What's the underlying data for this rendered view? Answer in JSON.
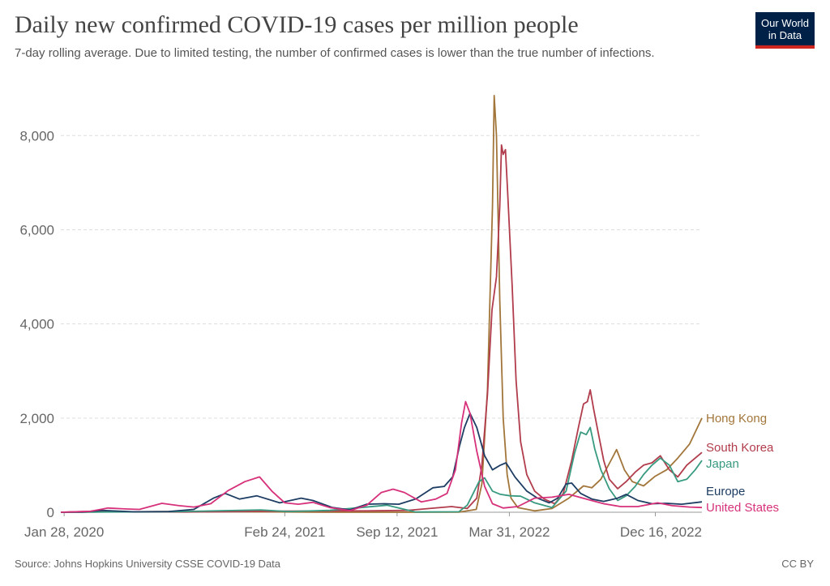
{
  "header": {
    "title": "Daily new confirmed COVID-19 cases per million people",
    "subtitle": "7-day rolling average. Due to limited testing, the number of confirmed cases is lower than the true number of infections."
  },
  "logo": {
    "line1": "Our World",
    "line2": "in Data"
  },
  "footer": {
    "source": "Source: Johns Hopkins University CSSE COVID-19 Data",
    "license": "CC BY"
  },
  "chart_data": {
    "type": "line",
    "title": "Daily new confirmed COVID-19 cases per million people",
    "subtitle": "7-day rolling average. Due to limited testing, the number of confirmed cases is lower than the true number of infections.",
    "xlabel": "",
    "ylabel": "",
    "x_ticks": [
      "Jan 28, 2020",
      "Feb 24, 2021",
      "Sep 12, 2021",
      "Mar 31, 2022",
      "Dec 16, 2022"
    ],
    "x_range": [
      "2020-01-22",
      "2023-03-09"
    ],
    "y_ticks": [
      0,
      2000,
      4000,
      6000,
      8000
    ],
    "y_tick_labels": [
      "0",
      "2,000",
      "4,000",
      "6,000",
      "8,000"
    ],
    "ylim": [
      0,
      8900
    ],
    "grid": "horizontal dashed",
    "legend": "inline labels at right end of lines",
    "series": [
      {
        "name": "Hong Kong",
        "color": "#a2763a",
        "points": [
          [
            "2020-01-22",
            0
          ],
          [
            "2020-07-29",
            15
          ],
          [
            "2020-12-01",
            12
          ],
          [
            "2021-01-15",
            8
          ],
          [
            "2021-06-01",
            0
          ],
          [
            "2021-12-31",
            2
          ],
          [
            "2022-01-31",
            60
          ],
          [
            "2022-02-10",
            600
          ],
          [
            "2022-02-20",
            2600
          ],
          [
            "2022-03-01",
            6500
          ],
          [
            "2022-03-04",
            8850
          ],
          [
            "2022-03-08",
            8000
          ],
          [
            "2022-03-14",
            4500
          ],
          [
            "2022-03-20",
            2000
          ],
          [
            "2022-03-27",
            800
          ],
          [
            "2022-04-03",
            300
          ],
          [
            "2022-04-15",
            100
          ],
          [
            "2022-05-15",
            30
          ],
          [
            "2022-06-15",
            80
          ],
          [
            "2022-07-15",
            300
          ],
          [
            "2022-08-10",
            560
          ],
          [
            "2022-08-25",
            520
          ],
          [
            "2022-09-10",
            700
          ],
          [
            "2022-10-01",
            1170
          ],
          [
            "2022-10-08",
            1330
          ],
          [
            "2022-10-22",
            900
          ],
          [
            "2022-11-05",
            650
          ],
          [
            "2022-11-25",
            560
          ],
          [
            "2022-12-15",
            760
          ],
          [
            "2023-01-05",
            900
          ],
          [
            "2023-01-25",
            1150
          ],
          [
            "2023-02-15",
            1450
          ],
          [
            "2023-03-09",
            2000
          ]
        ]
      },
      {
        "name": "South Korea",
        "color": "#b13c4c",
        "points": [
          [
            "2020-01-22",
            0
          ],
          [
            "2020-03-01",
            15
          ],
          [
            "2020-09-01",
            5
          ],
          [
            "2020-12-25",
            20
          ],
          [
            "2021-07-20",
            30
          ],
          [
            "2021-10-01",
            40
          ],
          [
            "2021-12-18",
            120
          ],
          [
            "2022-01-15",
            80
          ],
          [
            "2022-02-01",
            300
          ],
          [
            "2022-02-10",
            1000
          ],
          [
            "2022-02-20",
            2500
          ],
          [
            "2022-02-28",
            4300
          ],
          [
            "2022-03-08",
            5000
          ],
          [
            "2022-03-14",
            6500
          ],
          [
            "2022-03-17",
            7800
          ],
          [
            "2022-03-20",
            7600
          ],
          [
            "2022-03-24",
            7700
          ],
          [
            "2022-03-28",
            6800
          ],
          [
            "2022-04-05",
            4800
          ],
          [
            "2022-04-12",
            2800
          ],
          [
            "2022-04-20",
            1500
          ],
          [
            "2022-05-01",
            800
          ],
          [
            "2022-05-15",
            450
          ],
          [
            "2022-06-01",
            280
          ],
          [
            "2022-06-20",
            180
          ],
          [
            "2022-07-05",
            400
          ],
          [
            "2022-07-20",
            1100
          ],
          [
            "2022-08-01",
            1800
          ],
          [
            "2022-08-10",
            2300
          ],
          [
            "2022-08-17",
            2350
          ],
          [
            "2022-08-22",
            2600
          ],
          [
            "2022-08-28",
            2200
          ],
          [
            "2022-09-05",
            1700
          ],
          [
            "2022-09-15",
            1100
          ],
          [
            "2022-09-25",
            700
          ],
          [
            "2022-10-10",
            500
          ],
          [
            "2022-10-25",
            650
          ],
          [
            "2022-11-10",
            850
          ],
          [
            "2022-11-25",
            1000
          ],
          [
            "2022-12-10",
            1050
          ],
          [
            "2022-12-25",
            1200
          ],
          [
            "2023-01-10",
            900
          ],
          [
            "2023-01-25",
            750
          ],
          [
            "2023-02-10",
            1000
          ],
          [
            "2023-02-25",
            1150
          ],
          [
            "2023-03-09",
            1270
          ]
        ]
      },
      {
        "name": "Japan",
        "color": "#389a80",
        "points": [
          [
            "2020-01-22",
            0
          ],
          [
            "2020-08-05",
            10
          ],
          [
            "2021-01-12",
            50
          ],
          [
            "2021-03-01",
            15
          ],
          [
            "2021-05-15",
            40
          ],
          [
            "2021-08-25",
            150
          ],
          [
            "2021-10-15",
            5
          ],
          [
            "2021-12-31",
            10
          ],
          [
            "2022-01-15",
            150
          ],
          [
            "2022-02-05",
            650
          ],
          [
            "2022-02-15",
            730
          ],
          [
            "2022-03-01",
            450
          ],
          [
            "2022-03-15",
            380
          ],
          [
            "2022-04-01",
            350
          ],
          [
            "2022-04-20",
            340
          ],
          [
            "2022-05-15",
            200
          ],
          [
            "2022-06-15",
            100
          ],
          [
            "2022-07-10",
            450
          ],
          [
            "2022-07-25",
            1250
          ],
          [
            "2022-08-05",
            1700
          ],
          [
            "2022-08-15",
            1650
          ],
          [
            "2022-08-22",
            1800
          ],
          [
            "2022-08-30",
            1350
          ],
          [
            "2022-09-10",
            900
          ],
          [
            "2022-09-25",
            500
          ],
          [
            "2022-10-10",
            250
          ],
          [
            "2022-10-25",
            350
          ],
          [
            "2022-11-10",
            550
          ],
          [
            "2022-11-25",
            800
          ],
          [
            "2022-12-10",
            1000
          ],
          [
            "2022-12-25",
            1150
          ],
          [
            "2023-01-10",
            1000
          ],
          [
            "2023-01-25",
            650
          ],
          [
            "2023-02-10",
            700
          ],
          [
            "2023-02-25",
            900
          ],
          [
            "2023-03-09",
            1100
          ]
        ]
      },
      {
        "name": "Europe",
        "color": "#1d3d63",
        "points": [
          [
            "2020-01-22",
            0
          ],
          [
            "2020-03-01",
            5
          ],
          [
            "2020-04-05",
            40
          ],
          [
            "2020-06-01",
            8
          ],
          [
            "2020-08-01",
            15
          ],
          [
            "2020-09-15",
            60
          ],
          [
            "2020-10-20",
            300
          ],
          [
            "2020-11-10",
            400
          ],
          [
            "2020-12-05",
            280
          ],
          [
            "2021-01-05",
            350
          ],
          [
            "2021-02-15",
            200
          ],
          [
            "2021-03-25",
            300
          ],
          [
            "2021-04-15",
            250
          ],
          [
            "2021-05-20",
            100
          ],
          [
            "2021-06-20",
            50
          ],
          [
            "2021-07-20",
            170
          ],
          [
            "2021-08-20",
            180
          ],
          [
            "2021-09-15",
            170
          ],
          [
            "2021-10-15",
            280
          ],
          [
            "2021-11-15",
            520
          ],
          [
            "2021-12-05",
            550
          ],
          [
            "2021-12-20",
            750
          ],
          [
            "2022-01-01",
            1400
          ],
          [
            "2022-01-10",
            1800
          ],
          [
            "2022-01-20",
            2100
          ],
          [
            "2022-02-01",
            1800
          ],
          [
            "2022-02-15",
            1200
          ],
          [
            "2022-03-01",
            900
          ],
          [
            "2022-03-15",
            1000
          ],
          [
            "2022-03-25",
            1050
          ],
          [
            "2022-04-10",
            750
          ],
          [
            "2022-05-01",
            450
          ],
          [
            "2022-05-20",
            300
          ],
          [
            "2022-06-10",
            200
          ],
          [
            "2022-06-25",
            300
          ],
          [
            "2022-07-10",
            600
          ],
          [
            "2022-07-20",
            620
          ],
          [
            "2022-08-05",
            400
          ],
          [
            "2022-08-25",
            280
          ],
          [
            "2022-09-15",
            230
          ],
          [
            "2022-10-10",
            300
          ],
          [
            "2022-10-25",
            380
          ],
          [
            "2022-11-15",
            250
          ],
          [
            "2022-12-10",
            180
          ],
          [
            "2023-01-05",
            190
          ],
          [
            "2023-02-01",
            170
          ],
          [
            "2023-03-09",
            220
          ]
        ]
      },
      {
        "name": "United States",
        "color": "#d6317a",
        "points": [
          [
            "2020-01-22",
            0
          ],
          [
            "2020-03-15",
            20
          ],
          [
            "2020-04-15",
            90
          ],
          [
            "2020-05-15",
            70
          ],
          [
            "2020-06-10",
            60
          ],
          [
            "2020-07-20",
            190
          ],
          [
            "2020-08-20",
            140
          ],
          [
            "2020-09-15",
            110
          ],
          [
            "2020-10-15",
            180
          ],
          [
            "2020-11-15",
            460
          ],
          [
            "2020-12-15",
            650
          ],
          [
            "2021-01-10",
            750
          ],
          [
            "2021-02-01",
            450
          ],
          [
            "2021-02-24",
            200
          ],
          [
            "2021-03-20",
            170
          ],
          [
            "2021-04-15",
            210
          ],
          [
            "2021-05-15",
            100
          ],
          [
            "2021-06-20",
            35
          ],
          [
            "2021-07-20",
            150
          ],
          [
            "2021-08-15",
            420
          ],
          [
            "2021-09-05",
            490
          ],
          [
            "2021-09-25",
            420
          ],
          [
            "2021-10-25",
            220
          ],
          [
            "2021-11-20",
            280
          ],
          [
            "2021-12-10",
            400
          ],
          [
            "2021-12-25",
            900
          ],
          [
            "2022-01-05",
            1900
          ],
          [
            "2022-01-12",
            2350
          ],
          [
            "2022-01-20",
            2100
          ],
          [
            "2022-02-01",
            1300
          ],
          [
            "2022-02-15",
            550
          ],
          [
            "2022-03-01",
            180
          ],
          [
            "2022-03-20",
            90
          ],
          [
            "2022-04-15",
            120
          ],
          [
            "2022-05-15",
            300
          ],
          [
            "2022-06-15",
            320
          ],
          [
            "2022-07-15",
            380
          ],
          [
            "2022-08-15",
            280
          ],
          [
            "2022-09-15",
            180
          ],
          [
            "2022-10-15",
            120
          ],
          [
            "2022-11-15",
            120
          ],
          [
            "2022-12-20",
            200
          ],
          [
            "2023-01-15",
            140
          ],
          [
            "2023-02-15",
            110
          ],
          [
            "2023-03-09",
            100
          ]
        ]
      }
    ]
  }
}
